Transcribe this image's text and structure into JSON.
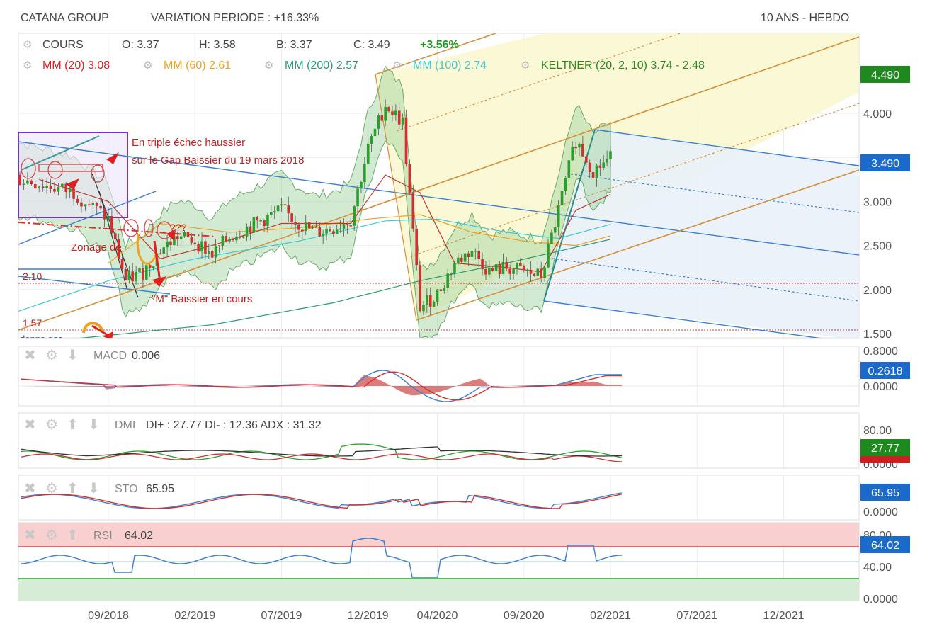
{
  "header": {
    "company": "CATANA GROUP",
    "variation": "VARIATION PERIODE : +16.33%",
    "timeframe": "10 ANS - HEBDO"
  },
  "ohlc": {
    "label": "COURS",
    "open": "O: 3.37",
    "high": "H: 3.58",
    "low": "B: 3.37",
    "close": "C: 3.49",
    "change": "+3.56%"
  },
  "indicators": [
    {
      "label": "MM (20)",
      "value": "3.08",
      "color": "#d62020"
    },
    {
      "label": "MM (60)",
      "value": "2.61",
      "color": "#f0a020"
    },
    {
      "label": "MM (200)",
      "value": "2.57",
      "color": "#2a9a70"
    },
    {
      "label": "MM (100)",
      "value": "2.74",
      "color": "#40c8d8"
    },
    {
      "label": "KELTNER (20, 2, 10)",
      "value": "3.74 - 2.48",
      "color": "#2a8a20"
    }
  ],
  "annotations": {
    "triple_a": "En triple échec haussier",
    "triple_b": "sur le Gap Baissier du 19 mars 2018",
    "zonage": "Zonage de",
    "question": "???",
    "baissier": "\"M\" Baissier en cours",
    "lvl210": "2.10",
    "lvl157": "1.57",
    "cut": "donne des"
  },
  "price_badges": {
    "top": "4.490",
    "last": "3.490"
  },
  "panels": {
    "macd": {
      "title": "MACD",
      "value": "0.006",
      "badge": "0.2618",
      "ticks": [
        "0.8000",
        "0.0000"
      ]
    },
    "dmi": {
      "title": "DMI",
      "value": "DI+ : 27.77 DI- : 12.36 ADX : 31.32",
      "badge": "27.77",
      "ticks": [
        "80.00",
        "0.0000"
      ]
    },
    "sto": {
      "title": "STO",
      "value": "65.95",
      "badge": "65.95",
      "ticks": [
        "0.0000"
      ]
    },
    "rsi": {
      "title": "RSI",
      "value": "64.02",
      "badge": "64.02",
      "ticks": [
        "80.00",
        "40.00",
        "0.0000"
      ]
    }
  },
  "chart_data": {
    "type": "line",
    "title": "",
    "x_tick_labels": [
      "09/2018",
      "02/2019",
      "07/2019",
      "12/2019",
      "04/2020",
      "09/2020",
      "02/2021",
      "07/2021",
      "12/2021"
    ],
    "y_tick_labels": [
      "4.000",
      "3.000",
      "2.500",
      "2.000",
      "1.500"
    ],
    "ylim": [
      1.5,
      4.49
    ],
    "grid": true,
    "series": [
      {
        "name": "COURS",
        "points": [
          [
            "2018-03",
            3.3
          ],
          [
            "2018-05",
            3.2
          ],
          [
            "2018-07",
            3.1
          ],
          [
            "2018-09",
            2.8
          ],
          [
            "2018-10",
            2.1
          ],
          [
            "2018-11",
            2.2
          ],
          [
            "2018-12",
            2.45
          ],
          [
            "2019-01",
            2.6
          ],
          [
            "2019-02",
            2.55
          ],
          [
            "2019-03",
            2.4
          ],
          [
            "2019-04",
            2.6
          ],
          [
            "2019-05",
            2.7
          ],
          [
            "2019-06",
            2.8
          ],
          [
            "2019-07",
            2.9
          ],
          [
            "2019-08",
            2.75
          ],
          [
            "2019-09",
            2.65
          ],
          [
            "2019-10",
            2.7
          ],
          [
            "2019-11",
            2.8
          ],
          [
            "2019-12",
            3.6
          ],
          [
            "2020-01",
            4.1
          ],
          [
            "2020-02",
            3.9
          ],
          [
            "2020-03",
            1.8
          ],
          [
            "2020-04",
            1.95
          ],
          [
            "2020-05",
            2.3
          ],
          [
            "2020-06",
            2.45
          ],
          [
            "2020-07",
            2.2
          ],
          [
            "2020-08",
            2.25
          ],
          [
            "2020-09",
            2.2
          ],
          [
            "2020-10",
            2.15
          ],
          [
            "2020-11",
            2.9
          ],
          [
            "2020-12",
            3.7
          ],
          [
            "2021-01",
            3.35
          ],
          [
            "2021-02",
            3.49
          ]
        ]
      },
      {
        "name": "MM (20)",
        "points": [
          [
            "2018-05",
            3.25
          ],
          [
            "2018-09",
            3.0
          ],
          [
            "2018-12",
            2.35
          ],
          [
            "2019-03",
            2.5
          ],
          [
            "2019-07",
            2.75
          ],
          [
            "2019-11",
            2.75
          ],
          [
            "2020-01",
            3.3
          ],
          [
            "2020-03",
            3.1
          ],
          [
            "2020-05",
            2.3
          ],
          [
            "2020-08",
            2.25
          ],
          [
            "2020-10",
            2.2
          ],
          [
            "2020-12",
            2.9
          ],
          [
            "2021-02",
            3.08
          ]
        ]
      },
      {
        "name": "MM (60)",
        "points": [
          [
            "2018-09",
            2.3
          ],
          [
            "2018-12",
            2.75
          ],
          [
            "2019-04",
            2.65
          ],
          [
            "2019-08",
            2.7
          ],
          [
            "2019-12",
            2.8
          ],
          [
            "2020-03",
            2.85
          ],
          [
            "2020-06",
            2.65
          ],
          [
            "2020-09",
            2.55
          ],
          [
            "2020-12",
            2.5
          ],
          [
            "2021-02",
            2.61
          ]
        ]
      },
      {
        "name": "MM (100)",
        "points": [
          [
            "2018-03",
            1.7
          ],
          [
            "2018-09",
            2.1
          ],
          [
            "2019-02",
            2.35
          ],
          [
            "2019-08",
            2.55
          ],
          [
            "2020-01",
            2.78
          ],
          [
            "2020-04",
            2.8
          ],
          [
            "2020-08",
            2.65
          ],
          [
            "2020-11",
            2.58
          ],
          [
            "2021-02",
            2.74
          ]
        ]
      },
      {
        "name": "MM (200)",
        "points": [
          [
            "2018-06",
            1.42
          ],
          [
            "2019-03",
            1.6
          ],
          [
            "2019-10",
            1.85
          ],
          [
            "2020-03",
            2.1
          ],
          [
            "2020-08",
            2.3
          ],
          [
            "2021-02",
            2.57
          ]
        ]
      },
      {
        "name": "KELTNER (20, 2, 10)",
        "points": [
          [
            "2018-09",
            2.9
          ],
          [
            "2019-01",
            2.4
          ],
          [
            "2019-06",
            2.85
          ],
          [
            "2019-11",
            2.95
          ],
          [
            "2020-01",
            4.2
          ],
          [
            "2020-03",
            3.6
          ],
          [
            "2020-06",
            2.55
          ],
          [
            "2020-10",
            2.4
          ],
          [
            "2020-12",
            3.3
          ],
          [
            "2021-02",
            3.74
          ]
        ]
      }
    ],
    "levels": [
      2.1,
      1.57
    ],
    "legend": "top-left"
  }
}
